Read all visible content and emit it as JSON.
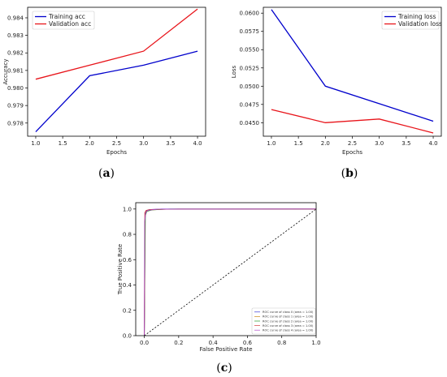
{
  "chart_data": [
    {
      "panel": "(a)",
      "type": "line",
      "xlabel": "Epochs",
      "ylabel": "Accuracy",
      "xlim": [
        0.85,
        4.15
      ],
      "ylim": [
        0.97725,
        0.9846
      ],
      "xticks": [
        "1.0",
        "1.5",
        "2.0",
        "2.5",
        "3.0",
        "3.5",
        "4.0"
      ],
      "xtick_values": [
        1.0,
        1.5,
        2.0,
        2.5,
        3.0,
        3.5,
        4.0
      ],
      "yticks": [
        "0.978",
        "0.979",
        "0.980",
        "0.981",
        "0.982",
        "0.983",
        "0.984"
      ],
      "ytick_values": [
        0.978,
        0.979,
        0.98,
        0.981,
        0.982,
        0.983,
        0.984
      ],
      "legend_position": "top-left",
      "series": [
        {
          "name": "Training acc",
          "color": "#0000cc",
          "x": [
            1,
            2,
            3,
            4
          ],
          "y": [
            0.9775,
            0.9807,
            0.9813,
            0.9821
          ]
        },
        {
          "name": "Validation acc",
          "color": "#e8141a",
          "x": [
            1,
            2,
            3,
            4
          ],
          "y": [
            0.9805,
            0.9813,
            0.9821,
            0.9845
          ]
        }
      ]
    },
    {
      "panel": "(b)",
      "type": "line",
      "xlabel": "Epochs",
      "ylabel": "Loss",
      "xlim": [
        0.85,
        4.15
      ],
      "ylim": [
        0.04315,
        0.0608
      ],
      "xticks": [
        "1.0",
        "1.5",
        "2.0",
        "2.5",
        "3.0",
        "3.5",
        "4.0"
      ],
      "xtick_values": [
        1.0,
        1.5,
        2.0,
        2.5,
        3.0,
        3.5,
        4.0
      ],
      "yticks": [
        "0.0450",
        "0.0475",
        "0.0500",
        "0.0525",
        "0.0550",
        "0.0575",
        "0.0600"
      ],
      "ytick_values": [
        0.045,
        0.0475,
        0.05,
        0.0525,
        0.055,
        0.0575,
        0.06
      ],
      "legend_position": "top-right",
      "series": [
        {
          "name": "Training loss",
          "color": "#0000cc",
          "x": [
            1,
            2,
            3,
            4
          ],
          "y": [
            0.0605,
            0.05,
            0.0476,
            0.0452
          ]
        },
        {
          "name": "Validation loss",
          "color": "#e8141a",
          "x": [
            1,
            2,
            3,
            4
          ],
          "y": [
            0.0468,
            0.045,
            0.0455,
            0.0436
          ]
        }
      ]
    },
    {
      "panel": "(c)",
      "type": "line",
      "xlabel": "False Positive Rate",
      "ylabel": "True Positive Rate",
      "xlim": [
        -0.05,
        1.0
      ],
      "ylim": [
        0.0,
        1.05
      ],
      "xticks": [
        "0.0",
        "0.2",
        "0.4",
        "0.6",
        "0.8",
        "1.0"
      ],
      "xtick_values": [
        0.0,
        0.2,
        0.4,
        0.6,
        0.8,
        1.0
      ],
      "yticks": [
        "0.0",
        "0.2",
        "0.4",
        "0.6",
        "0.8",
        "1.0"
      ],
      "ytick_values": [
        0.0,
        0.2,
        0.4,
        0.6,
        0.8,
        1.0
      ],
      "legend_position": "bottom-right",
      "series": [
        {
          "name": "ROC curve of class 0 (area = 1.00)",
          "color": "#3b3bd6",
          "x": [
            0,
            0.005,
            0.01,
            0.03,
            0.1,
            1.0
          ],
          "y": [
            0,
            0.96,
            0.985,
            0.995,
            1.0,
            1.0
          ]
        },
        {
          "name": "ROC curve of class 1 (area = 1.00)",
          "color": "#c98a1a",
          "x": [
            0,
            0.004,
            0.012,
            0.04,
            0.12,
            1.0
          ],
          "y": [
            0,
            0.94,
            0.98,
            0.993,
            0.999,
            1.0
          ]
        },
        {
          "name": "ROC curve of class 2 (area = 1.00)",
          "color": "#2a9a2a",
          "x": [
            0,
            0.006,
            0.015,
            0.05,
            0.15,
            1.0
          ],
          "y": [
            0,
            0.95,
            0.982,
            0.994,
            1.0,
            1.0
          ]
        },
        {
          "name": "ROC curve of class 3 (area = 1.00)",
          "color": "#d23a3a",
          "x": [
            0,
            0.003,
            0.01,
            0.03,
            0.2,
            1.0
          ],
          "y": [
            0,
            0.97,
            0.988,
            0.996,
            1.0,
            1.0
          ]
        },
        {
          "name": "ROC curve of class 4 (area = 1.00)",
          "color": "#b04ac8",
          "x": [
            0,
            0.002,
            0.008,
            0.02,
            0.08,
            1.0
          ],
          "y": [
            0,
            0.9,
            0.97,
            0.99,
            0.999,
            1.0
          ]
        }
      ],
      "reference_line": {
        "x": [
          0,
          1
        ],
        "y": [
          0,
          1
        ],
        "color": "#000000",
        "style": "dashed"
      }
    }
  ],
  "captions": {
    "a": "a",
    "b": "b",
    "c": "c"
  }
}
